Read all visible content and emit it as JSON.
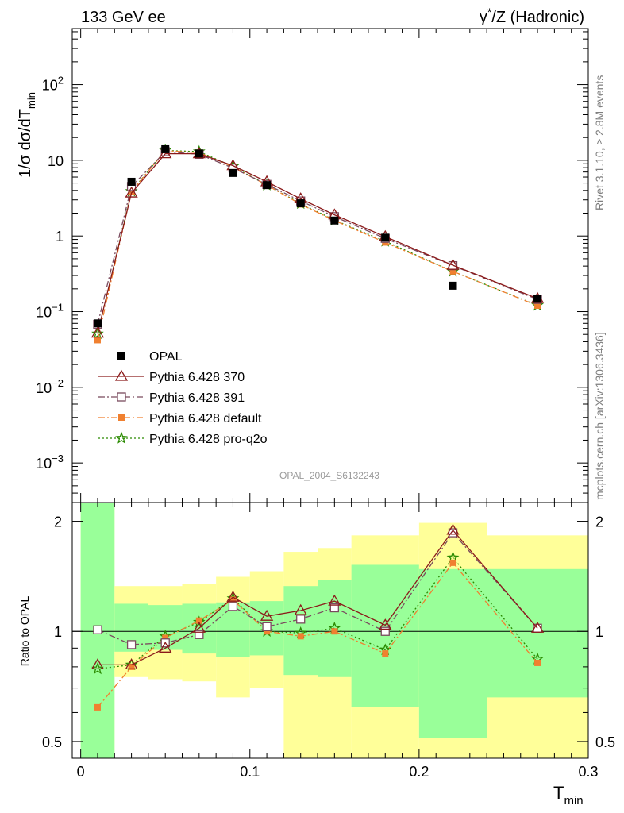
{
  "header": {
    "left": "133 GeV ee",
    "right_prefix": "γ",
    "right_sup": "*",
    "right_rest": "/Z (Hadronic)"
  },
  "side": {
    "rivet": "Rivet 3.1.10, ≥ 2.8M events",
    "mcplots": "mcplots.cern.ch [arXiv:1306.3436]"
  },
  "watermark": "OPAL_2004_S6132243",
  "colors": {
    "opal": "#000000",
    "p370": "#8b1a1a",
    "p391": "#7a4a5e",
    "pdefault": "#f08030",
    "pq2o": "#2a8a00",
    "band_yellow": "#ffff99",
    "band_green": "#99ff99"
  },
  "chart_data": [
    {
      "type": "scatter",
      "title": "",
      "xlabel": "T",
      "xlabel_sub": "min",
      "ylabel": "1/σ dσ/dT",
      "ylabel_sub": "min",
      "yscale": "log",
      "xlim": [
        -0.005,
        0.3
      ],
      "ylim": [
        0.0003,
        550
      ],
      "y_ticks": [
        {
          "value": 0.001,
          "base": "10",
          "exp": "−3"
        },
        {
          "value": 0.01,
          "base": "10",
          "exp": "−2"
        },
        {
          "value": 0.1,
          "base": "10",
          "exp": "−1"
        },
        {
          "value": 1,
          "base": "1",
          "exp": ""
        },
        {
          "value": 10,
          "base": "10",
          "exp": ""
        },
        {
          "value": 100,
          "base": "10",
          "exp": "2"
        }
      ],
      "x": [
        0.01,
        0.03,
        0.05,
        0.07,
        0.09,
        0.11,
        0.13,
        0.15,
        0.18,
        0.22,
        0.27
      ],
      "legend_position": "lower-left",
      "series": [
        {
          "name": "OPAL",
          "key": "opal",
          "marker": "filled-square",
          "line": "none",
          "values": [
            0.07,
            5.2,
            14.0,
            12.3,
            6.8,
            4.7,
            2.7,
            1.6,
            0.95,
            0.22,
            0.148
          ]
        },
        {
          "name": "Pythia 6.428 370",
          "key": "p370",
          "marker": "open-triangle",
          "line": "solid",
          "values": [
            0.052,
            3.7,
            12.2,
            12.2,
            8.5,
            5.2,
            3.1,
            1.9,
            0.98,
            0.41,
            0.149
          ]
        },
        {
          "name": "Pythia 6.428 391",
          "key": "p391",
          "marker": "open-square",
          "line": "dashdot",
          "values": [
            0.068,
            4.5,
            13.0,
            12.0,
            7.9,
            4.8,
            2.9,
            1.8,
            0.93,
            0.405,
            0.145
          ]
        },
        {
          "name": "Pythia 6.428 default",
          "key": "pdefault",
          "marker": "filled-square-small",
          "line": "dashdot",
          "values": [
            0.042,
            3.85,
            13.4,
            12.6,
            8.2,
            4.7,
            2.62,
            1.6,
            0.82,
            0.34,
            0.12
          ]
        },
        {
          "name": "Pythia 6.428 pro-q2o",
          "key": "pq2o",
          "marker": "star",
          "line": "dotted",
          "values": [
            0.051,
            3.9,
            13.5,
            13.0,
            8.3,
            4.7,
            2.68,
            1.62,
            0.85,
            0.34,
            0.121
          ]
        }
      ]
    },
    {
      "type": "line",
      "title": "",
      "xlabel": "T",
      "xlabel_sub": "min",
      "ylabel": "Ratio to OPAL",
      "yscale": "log",
      "xlim": [
        -0.005,
        0.3
      ],
      "ylim": [
        0.45,
        2.25
      ],
      "y_ticks": [
        0.5,
        1,
        2
      ],
      "y_tick_labels": [
        "0.5",
        "1",
        "2"
      ],
      "x_ticks": [
        0,
        0.1,
        0.2,
        0.3
      ],
      "x_tick_labels": [
        "0",
        "0.1",
        "0.2",
        "0.3"
      ],
      "x": [
        0.01,
        0.03,
        0.05,
        0.07,
        0.09,
        0.11,
        0.13,
        0.15,
        0.18,
        0.22,
        0.27
      ],
      "bands": [
        {
          "x0": 0.0,
          "x1": 0.02,
          "y_lo": 0.45,
          "y_hi": 2.25,
          "g_lo": 0.45,
          "g_hi": 2.25
        },
        {
          "x0": 0.02,
          "x1": 0.04,
          "y_lo": 0.75,
          "y_hi": 1.33,
          "g_lo": 0.88,
          "g_hi": 1.19
        },
        {
          "x0": 0.04,
          "x1": 0.06,
          "y_lo": 0.74,
          "y_hi": 1.33,
          "g_lo": 0.89,
          "g_hi": 1.18
        },
        {
          "x0": 0.06,
          "x1": 0.08,
          "y_lo": 0.73,
          "y_hi": 1.35,
          "g_lo": 0.87,
          "g_hi": 1.19
        },
        {
          "x0": 0.08,
          "x1": 0.1,
          "y_lo": 0.66,
          "y_hi": 1.41,
          "g_lo": 0.85,
          "g_hi": 1.2
        },
        {
          "x0": 0.1,
          "x1": 0.12,
          "y_lo": 0.7,
          "y_hi": 1.46,
          "g_lo": 0.86,
          "g_hi": 1.21
        },
        {
          "x0": 0.12,
          "x1": 0.14,
          "y_lo": 0.38,
          "y_hi": 1.65,
          "g_lo": 0.76,
          "g_hi": 1.33
        },
        {
          "x0": 0.14,
          "x1": 0.16,
          "y_lo": 0.37,
          "y_hi": 1.69,
          "g_lo": 0.75,
          "g_hi": 1.38
        },
        {
          "x0": 0.16,
          "x1": 0.2,
          "y_lo": 0.37,
          "y_hi": 1.83,
          "g_lo": 0.62,
          "g_hi": 1.52
        },
        {
          "x0": 0.2,
          "x1": 0.24,
          "y_lo": 0.36,
          "y_hi": 1.98,
          "g_lo": 0.51,
          "g_hi": 1.48
        },
        {
          "x0": 0.24,
          "x1": 0.3,
          "y_lo": 0.36,
          "y_hi": 1.83,
          "g_lo": 0.66,
          "g_hi": 1.48
        }
      ],
      "series": [
        {
          "name": "Pythia 6.428 370",
          "key": "p370",
          "marker": "open-triangle",
          "line": "solid",
          "values": [
            0.81,
            0.81,
            0.9,
            1.02,
            1.24,
            1.1,
            1.14,
            1.21,
            1.04,
            1.89,
            1.02
          ]
        },
        {
          "name": "Pythia 6.428 391",
          "key": "p391",
          "marker": "open-square",
          "line": "dashdot",
          "values": [
            1.01,
            0.92,
            0.93,
            0.98,
            1.17,
            1.03,
            1.08,
            1.16,
            1.0,
            1.86,
            1.02
          ]
        },
        {
          "name": "Pythia 6.428 default",
          "key": "pdefault",
          "marker": "filled-square-small",
          "line": "dashdot",
          "values": [
            0.62,
            0.8,
            0.96,
            1.07,
            1.22,
            1.0,
            0.97,
            1.0,
            0.87,
            1.54,
            0.82
          ]
        },
        {
          "name": "Pythia 6.428 pro-q2o",
          "key": "pq2o",
          "marker": "star",
          "line": "dotted",
          "values": [
            0.79,
            0.81,
            0.97,
            1.06,
            1.23,
            1.0,
            0.99,
            1.02,
            0.89,
            1.59,
            0.84
          ]
        }
      ]
    }
  ]
}
